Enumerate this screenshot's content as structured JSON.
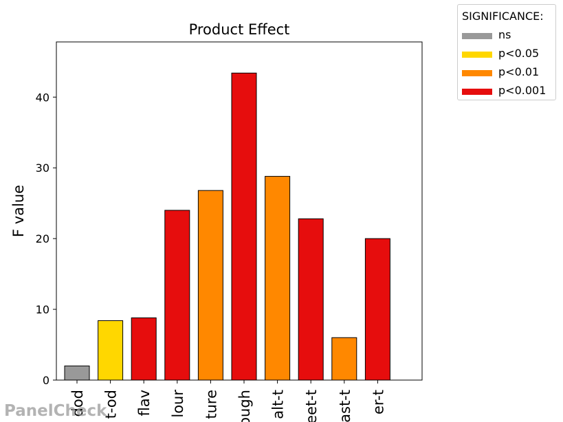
{
  "chart_data": {
    "type": "bar",
    "title": "Product Effect",
    "xlabel": "",
    "ylabel": "F value",
    "ylim": [
      0,
      47.8
    ],
    "yticks": [
      0,
      10,
      20,
      30,
      40
    ],
    "grid": false,
    "categories": [
      "dod",
      "t-od",
      "flav",
      "lour",
      "ture",
      "ough",
      "alt-t",
      "eet-t",
      "ast-t",
      "er-t"
    ],
    "values": [
      2.0,
      8.4,
      8.8,
      24.0,
      26.8,
      43.4,
      28.8,
      22.8,
      6.0,
      20.0
    ],
    "significance": [
      "ns",
      "p<0.05",
      "p<0.001",
      "p<0.001",
      "p<0.01",
      "p<0.001",
      "p<0.01",
      "p<0.001",
      "p<0.01",
      "p<0.001"
    ],
    "legend": {
      "title": "SIGNIFICANCE:",
      "placement": "outside top-right",
      "entries": [
        {
          "label": "ns",
          "color": "#999999"
        },
        {
          "label": "p<0.05",
          "color": "#FFD700"
        },
        {
          "label": "p<0.01",
          "color": "#FF8800"
        },
        {
          "label": "p<0.001",
          "color": "#E60D0D"
        }
      ]
    }
  },
  "watermark": "PanelCheck"
}
